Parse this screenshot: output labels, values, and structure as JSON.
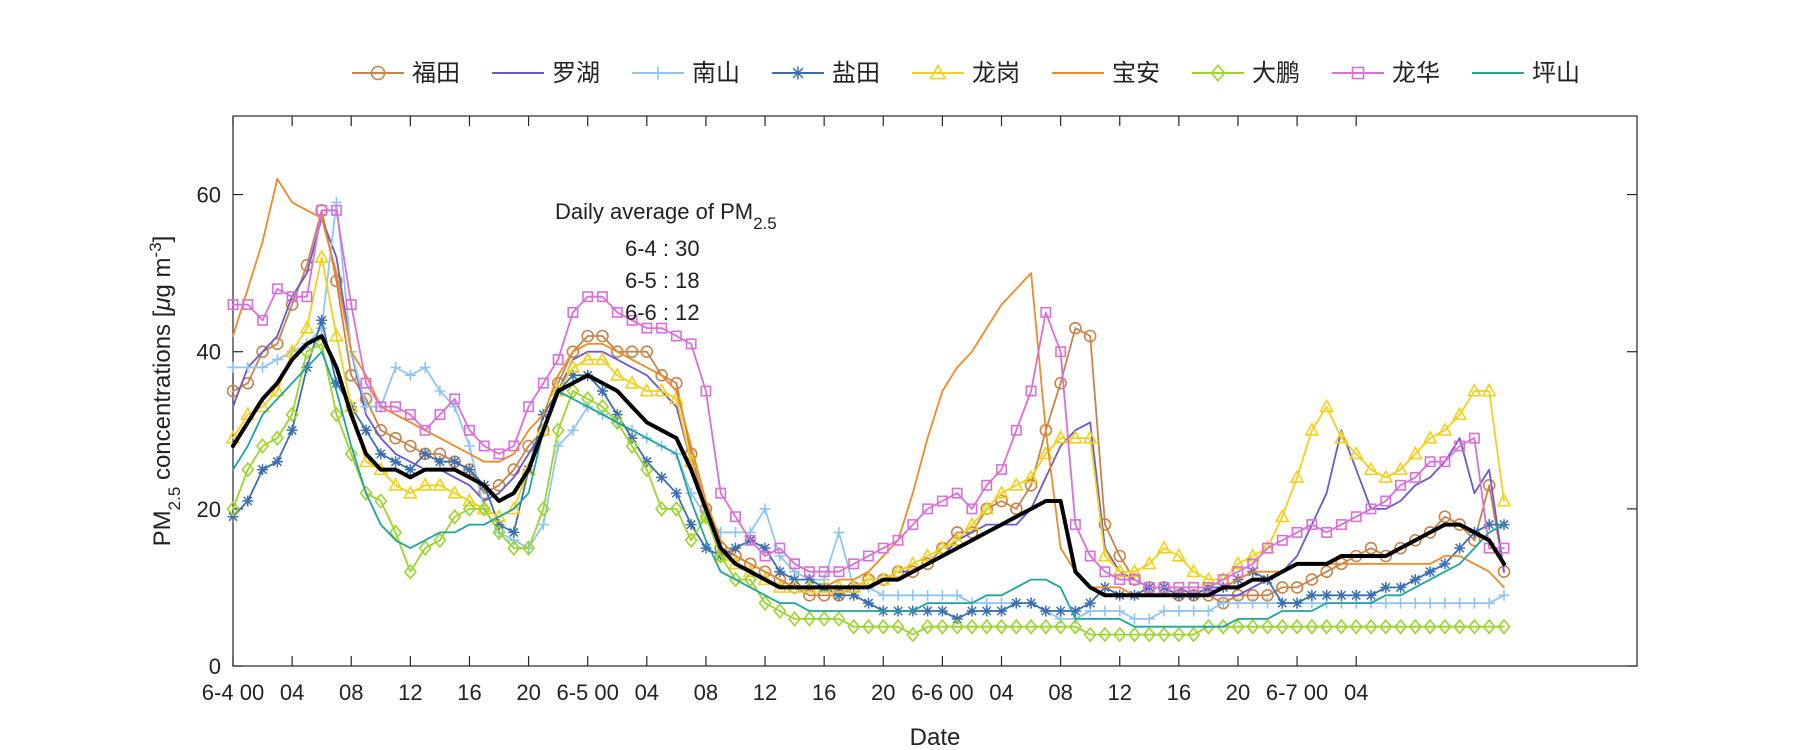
{
  "chart_data": {
    "type": "line",
    "xlabel": "Date",
    "ylabel_parts": [
      "PM",
      "2.5",
      " concentrations [",
      "μ",
      "g m",
      "-3",
      "]"
    ],
    "ylim": [
      0,
      70
    ],
    "yticks": [
      0,
      20,
      40,
      60
    ],
    "xlim": [
      0,
      95
    ],
    "xticks": [
      {
        "x": 0,
        "label": "6-4 00"
      },
      {
        "x": 4,
        "label": "04"
      },
      {
        "x": 8,
        "label": "08"
      },
      {
        "x": 12,
        "label": "12"
      },
      {
        "x": 16,
        "label": "16"
      },
      {
        "x": 20,
        "label": "20"
      },
      {
        "x": 24,
        "label": "6-5 00"
      },
      {
        "x": 28,
        "label": "04"
      },
      {
        "x": 32,
        "label": "08"
      },
      {
        "x": 36,
        "label": "12"
      },
      {
        "x": 40,
        "label": "16"
      },
      {
        "x": 44,
        "label": "20"
      },
      {
        "x": 48,
        "label": "6-6 00"
      },
      {
        "x": 52,
        "label": "04"
      },
      {
        "x": 56,
        "label": "08"
      },
      {
        "x": 60,
        "label": "12"
      },
      {
        "x": 64,
        "label": "16"
      },
      {
        "x": 68,
        "label": "20"
      },
      {
        "x": 72,
        "label": "6-7 00"
      },
      {
        "x": 76,
        "label": "04"
      }
    ],
    "legend_position": "top",
    "annotation": {
      "title": "Daily average of PM",
      "title_sub": "2.5",
      "lines": [
        "6-4 : 30",
        "6-5 : 18",
        "6-6 : 12"
      ]
    },
    "series": [
      {
        "name": "福田",
        "color": "#c9834a",
        "marker": "circle",
        "values": [
          35,
          36,
          40,
          41,
          46,
          51,
          58,
          49,
          37,
          34,
          30,
          29,
          28,
          27,
          27,
          26,
          25,
          22,
          23,
          25,
          28,
          30,
          36,
          40,
          42,
          42,
          40,
          40,
          40,
          37,
          36,
          27,
          20,
          15,
          14,
          13,
          12,
          11,
          10,
          9,
          9,
          9,
          10,
          11,
          11,
          12,
          12,
          13,
          15,
          17,
          17,
          20,
          21,
          20,
          23,
          30,
          36,
          43,
          42,
          18,
          14,
          11,
          10,
          10,
          9,
          9,
          9,
          8,
          9,
          9,
          9,
          10,
          10,
          11,
          12,
          13,
          14,
          15,
          14,
          15,
          16,
          17,
          19,
          18,
          16,
          23,
          12
        ]
      },
      {
        "name": "罗湖",
        "color": "#6a5acd",
        "marker": "none",
        "values": [
          33,
          38,
          40,
          42,
          47,
          50,
          57,
          52,
          40,
          32,
          29,
          27,
          26,
          25,
          25,
          24,
          23,
          21,
          22,
          24,
          27,
          30,
          35,
          39,
          40,
          40,
          39,
          38,
          37,
          35,
          33,
          26,
          19,
          15,
          14,
          13,
          12,
          11,
          10,
          10,
          10,
          10,
          10,
          11,
          11,
          12,
          12,
          13,
          14,
          16,
          17,
          18,
          18,
          18,
          20,
          24,
          28,
          30,
          31,
          15,
          12,
          11,
          10,
          10,
          10,
          9,
          9,
          9,
          9,
          10,
          11,
          12,
          14,
          18,
          22,
          30,
          25,
          20,
          20,
          21,
          23,
          24,
          26,
          29,
          22,
          25,
          12
        ]
      },
      {
        "name": "南山",
        "color": "#8ec6f0",
        "marker": "plus",
        "values": [
          38,
          38,
          38,
          39,
          40,
          41,
          43,
          59,
          40,
          33,
          33,
          38,
          37,
          38,
          35,
          33,
          28,
          20,
          17,
          16,
          15,
          18,
          28,
          30,
          33,
          32,
          31,
          30,
          29,
          28,
          27,
          22,
          19,
          17,
          17,
          17,
          20,
          14,
          12,
          11,
          11,
          17,
          10,
          10,
          9,
          9,
          9,
          9,
          9,
          9,
          8,
          8,
          8,
          8,
          8,
          7,
          6,
          6,
          7,
          7,
          7,
          6,
          6,
          7,
          7,
          7,
          7,
          8,
          8,
          8,
          8,
          8,
          8,
          8,
          8,
          8,
          8,
          8,
          8,
          8,
          8,
          8,
          8,
          8,
          8,
          8,
          9
        ]
      },
      {
        "name": "盐田",
        "color": "#3a6fb0",
        "marker": "star",
        "values": [
          19,
          21,
          25,
          26,
          30,
          38,
          44,
          36,
          33,
          30,
          27,
          26,
          25,
          27,
          26,
          26,
          25,
          23,
          18,
          17,
          25,
          32,
          35,
          37,
          37,
          35,
          32,
          29,
          26,
          24,
          22,
          18,
          15,
          14,
          15,
          16,
          15,
          12,
          11,
          11,
          10,
          9,
          9,
          8,
          7,
          7,
          7,
          7,
          7,
          6,
          7,
          7,
          7,
          8,
          8,
          7,
          7,
          7,
          8,
          10,
          9,
          9,
          10,
          10,
          9,
          9,
          10,
          10,
          11,
          12,
          11,
          8,
          8,
          9,
          9,
          9,
          9,
          9,
          10,
          10,
          11,
          12,
          13,
          15,
          17,
          18,
          18
        ]
      },
      {
        "name": "龙岗",
        "color": "#f2d01b",
        "marker": "triangle",
        "values": [
          29,
          32,
          33,
          35,
          40,
          43,
          52,
          42,
          33,
          26,
          25,
          23,
          22,
          23,
          23,
          22,
          21,
          20,
          19,
          20,
          25,
          30,
          35,
          38,
          39,
          39,
          37,
          36,
          35,
          35,
          34,
          26,
          19,
          14,
          13,
          12,
          11,
          10,
          10,
          10,
          10,
          10,
          10,
          11,
          11,
          12,
          13,
          14,
          15,
          16,
          18,
          20,
          22,
          23,
          24,
          27,
          29,
          29,
          29,
          14,
          12,
          12,
          13,
          15,
          14,
          12,
          11,
          11,
          13,
          14,
          15,
          19,
          24,
          30,
          33,
          29,
          27,
          25,
          24,
          25,
          27,
          29,
          30,
          32,
          35,
          35,
          21
        ]
      },
      {
        "name": "宝安",
        "color": "#f08a24",
        "marker": "none",
        "values": [
          42,
          48,
          54,
          62,
          59,
          58,
          57,
          50,
          40,
          37,
          33,
          32,
          31,
          30,
          29,
          28,
          27,
          26,
          26,
          27,
          30,
          32,
          37,
          40,
          41,
          41,
          40,
          39,
          38,
          37,
          35,
          28,
          21,
          16,
          14,
          13,
          12,
          11,
          10,
          10,
          10,
          11,
          11,
          12,
          14,
          16,
          22,
          29,
          35,
          38,
          40,
          43,
          46,
          48,
          50,
          30,
          15,
          12,
          10,
          10,
          10,
          9,
          9,
          9,
          9,
          9,
          9,
          10,
          11,
          12,
          12,
          12,
          13,
          13,
          13,
          13,
          13,
          13,
          13,
          13,
          13,
          13,
          14,
          14,
          13,
          12,
          10
        ]
      },
      {
        "name": "大鹏",
        "color": "#9ad52a",
        "marker": "diamond",
        "values": [
          20,
          25,
          28,
          29,
          32,
          40,
          41,
          32,
          27,
          22,
          21,
          17,
          12,
          15,
          16,
          19,
          20,
          20,
          17,
          15,
          15,
          20,
          30,
          35,
          34,
          33,
          31,
          28,
          25,
          20,
          20,
          16,
          19,
          14,
          11,
          11,
          8,
          7,
          6,
          6,
          6,
          6,
          5,
          5,
          5,
          5,
          4,
          5,
          5,
          5,
          5,
          5,
          5,
          5,
          5,
          5,
          5,
          5,
          4,
          4,
          4,
          4,
          4,
          4,
          4,
          4,
          5,
          5,
          5,
          5,
          5,
          5,
          5,
          5,
          5,
          5,
          5,
          5,
          5,
          5,
          5,
          5,
          5,
          5,
          5,
          5,
          5
        ]
      },
      {
        "name": "龙华",
        "color": "#da6fd8",
        "marker": "square",
        "values": [
          46,
          46,
          44,
          48,
          47,
          47,
          58,
          58,
          46,
          36,
          33,
          33,
          32,
          30,
          32,
          34,
          30,
          28,
          27,
          28,
          33,
          36,
          39,
          45,
          47,
          47,
          45,
          44,
          43,
          43,
          42,
          41,
          35,
          22,
          19,
          16,
          14,
          15,
          13,
          12,
          12,
          12,
          13,
          14,
          15,
          16,
          18,
          20,
          21,
          22,
          20,
          23,
          25,
          30,
          35,
          45,
          40,
          18,
          14,
          12,
          11,
          11,
          10,
          10,
          10,
          10,
          10,
          11,
          12,
          13,
          15,
          16,
          17,
          18,
          17,
          18,
          19,
          20,
          21,
          23,
          24,
          26,
          26,
          28,
          29,
          15,
          15
        ]
      },
      {
        "name": "坪山",
        "color": "#1ea5a0",
        "marker": "none",
        "values": [
          25,
          28,
          32,
          34,
          36,
          38,
          40,
          35,
          28,
          22,
          18,
          16,
          15,
          16,
          17,
          17,
          18,
          18,
          19,
          20,
          22,
          30,
          35,
          34,
          33,
          32,
          31,
          30,
          29,
          28,
          27,
          21,
          16,
          12,
          11,
          10,
          9,
          8,
          8,
          7,
          7,
          7,
          7,
          7,
          7,
          7,
          7,
          8,
          8,
          8,
          8,
          9,
          9,
          10,
          11,
          11,
          10,
          6,
          6,
          6,
          6,
          5,
          5,
          5,
          5,
          5,
          5,
          5,
          6,
          6,
          6,
          7,
          7,
          7,
          8,
          8,
          8,
          8,
          9,
          9,
          10,
          11,
          12,
          13,
          15,
          17,
          18
        ]
      },
      {
        "name": "average",
        "color": "#000000",
        "marker": "none",
        "width": 4,
        "legend": false,
        "values": [
          28,
          31,
          34,
          36,
          39,
          41,
          42,
          38,
          32,
          27,
          25,
          25,
          24,
          25,
          25,
          25,
          24,
          23,
          21,
          22,
          25,
          30,
          35,
          36,
          37,
          36,
          35,
          33,
          31,
          30,
          29,
          25,
          20,
          15,
          13,
          12,
          11,
          10,
          10,
          10,
          10,
          10,
          10,
          10,
          11,
          11,
          12,
          13,
          14,
          15,
          16,
          17,
          18,
          19,
          20,
          21,
          21,
          12,
          10,
          9,
          9,
          9,
          9,
          9,
          9,
          9,
          9,
          10,
          10,
          11,
          11,
          12,
          13,
          13,
          13,
          14,
          14,
          14,
          14,
          15,
          16,
          17,
          18,
          18,
          17,
          16,
          13
        ]
      }
    ]
  }
}
